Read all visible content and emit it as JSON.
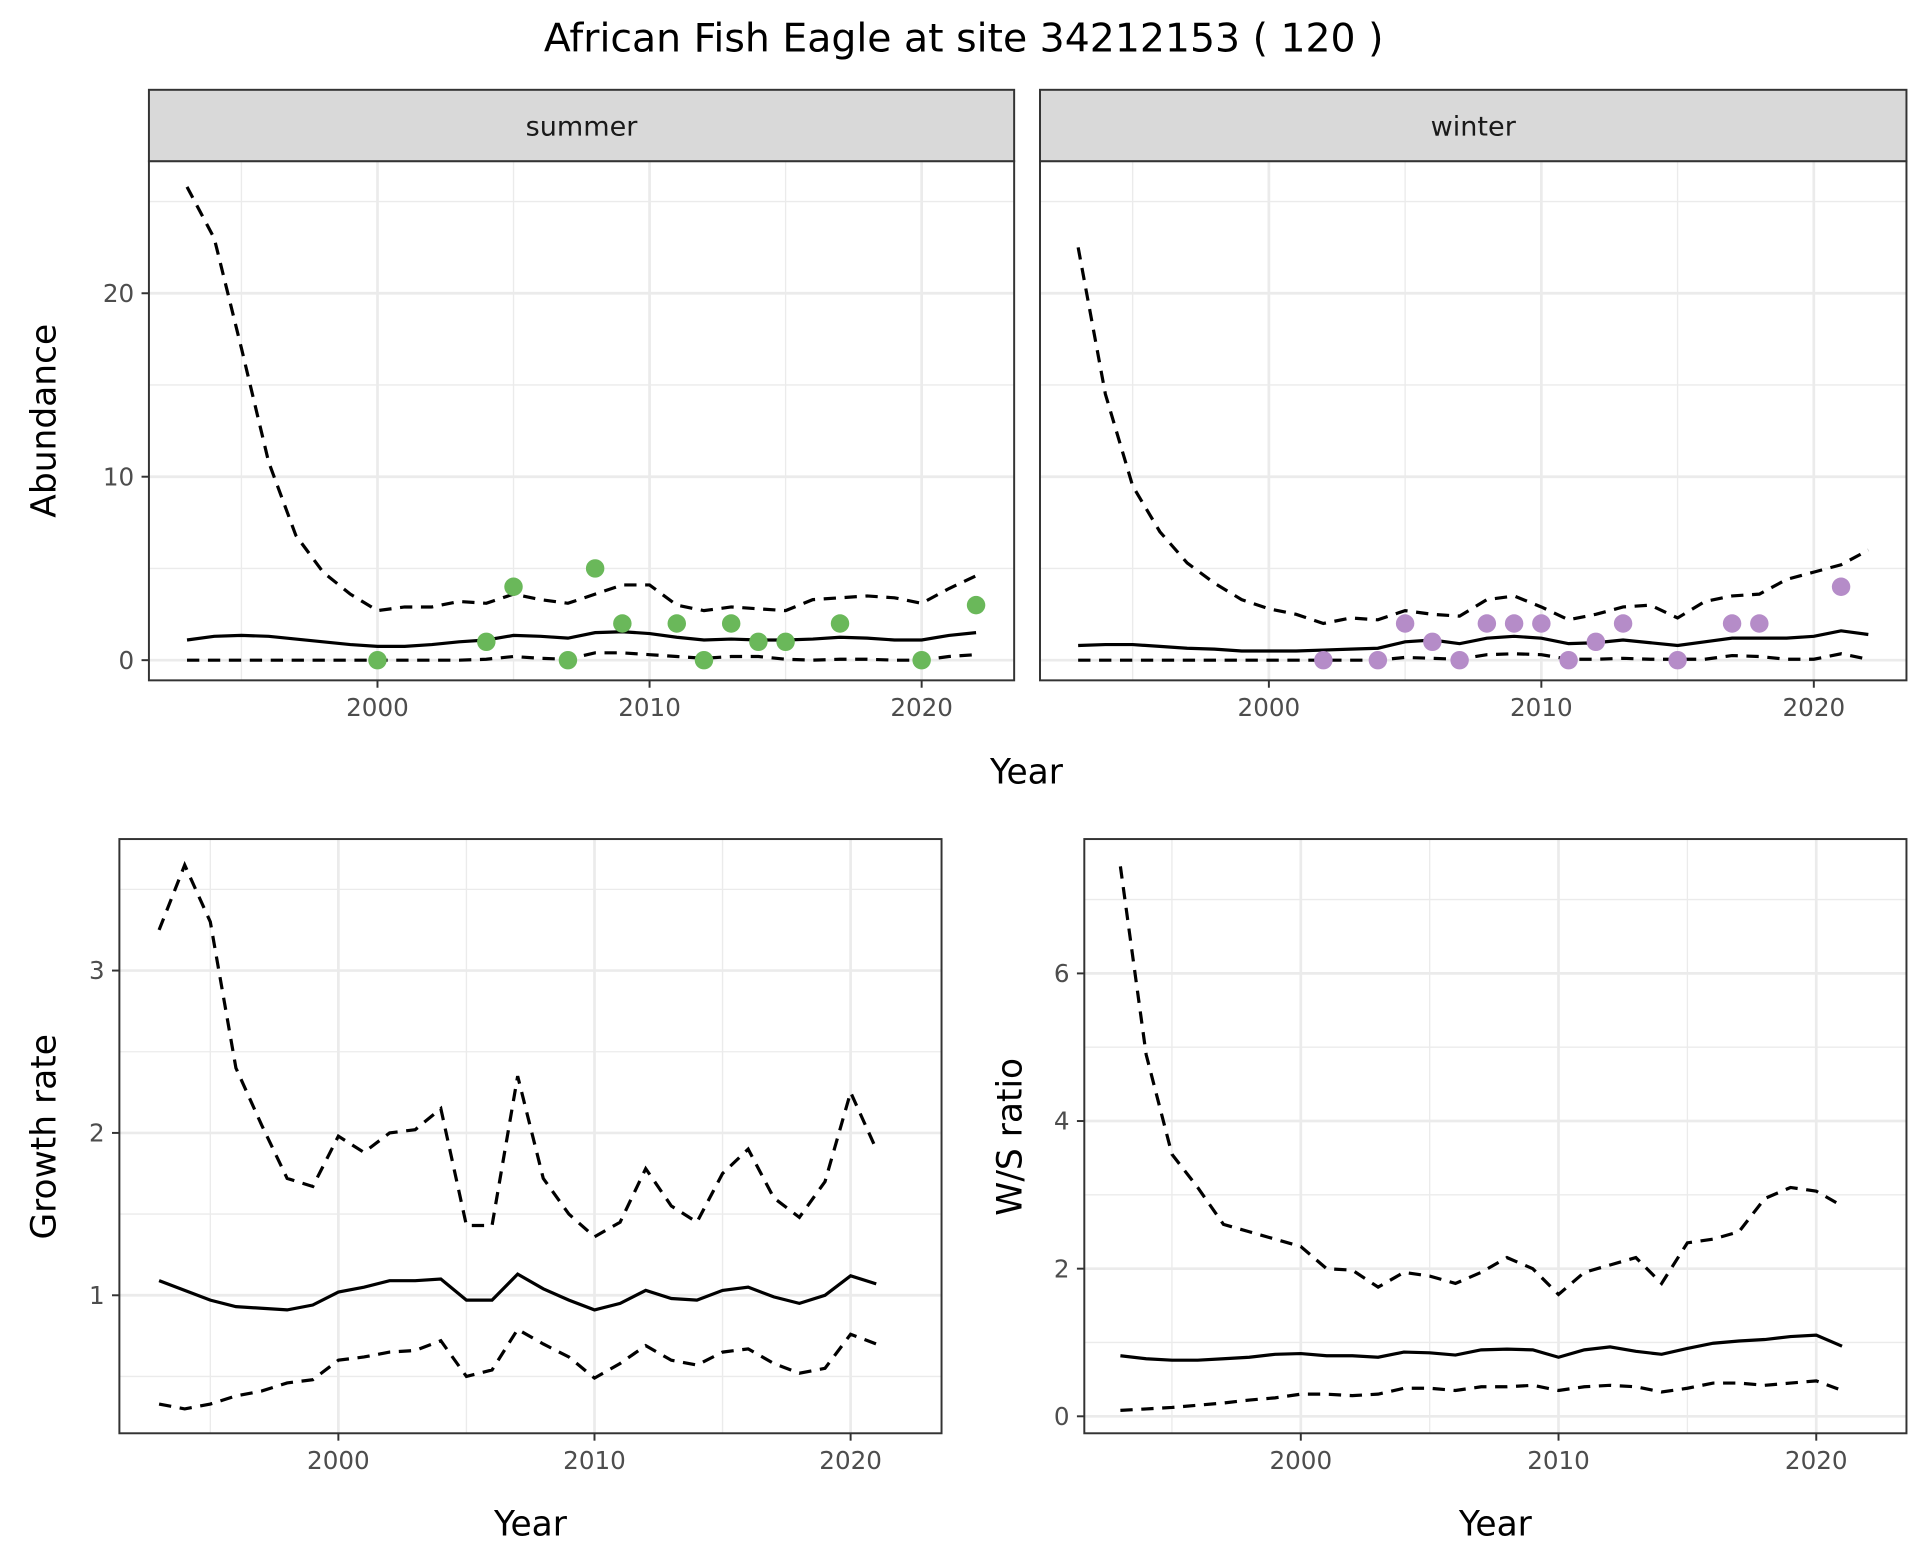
{
  "title": "African Fish Eagle at site 34212153 ( 120 )",
  "colors": {
    "summer": "#6ab85a",
    "winter": "#b58cc8",
    "line": "#000000",
    "grid": "#ebebeb",
    "strip": "#d9d9d9",
    "border": "#333333"
  },
  "chart_data": [
    {
      "type": "line",
      "id": "abundance",
      "facets": [
        "summer",
        "winter"
      ],
      "xlabel": "Year",
      "ylabel": "Abundance",
      "xlim": [
        1991.6,
        2023.4
      ],
      "ylim": [
        -1.1,
        27.2
      ],
      "xticks": [
        2000,
        2010,
        2020
      ],
      "yticks": [
        0,
        10,
        20
      ],
      "grid": true,
      "panels": [
        {
          "strip": "summer",
          "years": [
            1993,
            1994,
            1995,
            1996,
            1997,
            1998,
            1999,
            2000,
            2001,
            2002,
            2003,
            2004,
            2005,
            2006,
            2007,
            2008,
            2009,
            2010,
            2011,
            2012,
            2013,
            2014,
            2015,
            2016,
            2017,
            2018,
            2019,
            2020,
            2021,
            2022
          ],
          "mean": [
            1.1,
            1.3,
            1.35,
            1.3,
            1.15,
            1.0,
            0.85,
            0.75,
            0.75,
            0.85,
            1.0,
            1.1,
            1.35,
            1.3,
            1.2,
            1.5,
            1.55,
            1.45,
            1.25,
            1.1,
            1.15,
            1.1,
            1.1,
            1.15,
            1.25,
            1.2,
            1.1,
            1.1,
            1.35,
            1.5
          ],
          "upper": [
            25.8,
            23,
            17,
            10.8,
            6.8,
            4.8,
            3.6,
            2.7,
            2.9,
            2.9,
            3.2,
            3.1,
            3.6,
            3.3,
            3.1,
            3.6,
            4.1,
            4.1,
            3.0,
            2.7,
            2.9,
            2.8,
            2.7,
            3.3,
            3.4,
            3.5,
            3.4,
            3.1,
            3.9,
            4.6
          ],
          "lower": [
            0,
            0,
            0,
            0,
            0,
            0,
            0,
            0,
            0,
            0,
            0,
            0.05,
            0.2,
            0.1,
            0.05,
            0.4,
            0.4,
            0.3,
            0.2,
            0.1,
            0.2,
            0.2,
            0.05,
            0,
            0.05,
            0.05,
            0,
            0,
            0.2,
            0.3
          ],
          "points": {
            "x": [
              2000,
              2004,
              2005,
              2007,
              2008,
              2009,
              2011,
              2012,
              2013,
              2014,
              2015,
              2017,
              2020,
              2022
            ],
            "y": [
              0,
              1,
              4,
              0,
              5,
              2,
              2,
              0,
              2,
              1,
              1,
              2,
              0,
              3
            ]
          }
        },
        {
          "strip": "winter",
          "years": [
            1993,
            1994,
            1995,
            1996,
            1997,
            1998,
            1999,
            2000,
            2001,
            2002,
            2003,
            2004,
            2005,
            2006,
            2007,
            2008,
            2009,
            2010,
            2011,
            2012,
            2013,
            2014,
            2015,
            2016,
            2017,
            2018,
            2019,
            2020,
            2021,
            2022
          ],
          "mean": [
            0.8,
            0.85,
            0.85,
            0.75,
            0.65,
            0.6,
            0.5,
            0.5,
            0.5,
            0.55,
            0.6,
            0.65,
            1.0,
            1.1,
            0.9,
            1.2,
            1.3,
            1.2,
            0.9,
            0.95,
            1.1,
            0.95,
            0.8,
            1.0,
            1.2,
            1.2,
            1.2,
            1.3,
            1.6,
            1.4
          ],
          "upper": [
            22.5,
            14.5,
            9.5,
            7,
            5.3,
            4.2,
            3.3,
            2.8,
            2.5,
            2.0,
            2.3,
            2.2,
            2.7,
            2.5,
            2.4,
            3.3,
            3.5,
            2.9,
            2.2,
            2.5,
            2.9,
            3.0,
            2.3,
            3.2,
            3.5,
            3.6,
            4.4,
            4.8,
            5.2,
            6.0
          ],
          "lower": [
            0,
            0,
            0,
            0,
            0,
            0,
            0,
            0,
            0,
            0,
            0,
            0,
            0.15,
            0.1,
            0.05,
            0.3,
            0.35,
            0.3,
            0.05,
            0.05,
            0.1,
            0.05,
            0.05,
            0.05,
            0.25,
            0.2,
            0.05,
            0.05,
            0.35,
            0.05
          ],
          "points": {
            "x": [
              2002,
              2004,
              2005,
              2006,
              2007,
              2008,
              2009,
              2010,
              2011,
              2012,
              2013,
              2015,
              2017,
              2018,
              2021
            ],
            "y": [
              0,
              0,
              2,
              1,
              0,
              2,
              2,
              2,
              0,
              1,
              2,
              0,
              2,
              2,
              4
            ]
          }
        }
      ]
    },
    {
      "type": "line",
      "id": "growth",
      "xlabel": "Year",
      "ylabel": "Growth rate",
      "xlim": [
        1991.45,
        2023.55
      ],
      "ylim": [
        0.15,
        3.81
      ],
      "xticks": [
        2000,
        2010,
        2020
      ],
      "yticks": [
        1,
        2,
        3
      ],
      "grid": true,
      "years": [
        1993,
        1994,
        1995,
        1996,
        1997,
        1998,
        1999,
        2000,
        2001,
        2002,
        2003,
        2004,
        2005,
        2006,
        2007,
        2008,
        2009,
        2010,
        2011,
        2012,
        2013,
        2014,
        2015,
        2016,
        2017,
        2018,
        2019,
        2020,
        2021
      ],
      "mean": [
        1.09,
        1.03,
        0.97,
        0.93,
        0.92,
        0.91,
        0.94,
        1.02,
        1.05,
        1.09,
        1.09,
        1.1,
        0.97,
        0.97,
        1.13,
        1.04,
        0.97,
        0.91,
        0.95,
        1.03,
        0.98,
        0.97,
        1.03,
        1.05,
        0.99,
        0.95,
        1.0,
        1.12,
        1.07
      ],
      "upper": [
        3.25,
        3.65,
        3.3,
        2.4,
        2.05,
        1.72,
        1.67,
        1.98,
        1.88,
        2.0,
        2.02,
        2.15,
        1.43,
        1.43,
        2.35,
        1.72,
        1.5,
        1.36,
        1.45,
        1.78,
        1.55,
        1.45,
        1.75,
        1.9,
        1.6,
        1.48,
        1.7,
        2.25,
        1.9
      ],
      "lower": [
        0.33,
        0.3,
        0.33,
        0.38,
        0.41,
        0.46,
        0.48,
        0.6,
        0.62,
        0.65,
        0.66,
        0.72,
        0.5,
        0.54,
        0.79,
        0.7,
        0.62,
        0.49,
        0.58,
        0.69,
        0.6,
        0.57,
        0.65,
        0.67,
        0.58,
        0.52,
        0.55,
        0.76,
        0.7
      ]
    },
    {
      "type": "line",
      "id": "ratio",
      "xlabel": "Year",
      "ylabel": "W/S ratio",
      "xlim": [
        1991.6,
        2023.5
      ],
      "ylim": [
        -0.23,
        7.82
      ],
      "xticks": [
        2000,
        2010,
        2020
      ],
      "yticks": [
        0,
        2,
        4,
        6
      ],
      "grid": true,
      "years": [
        1993,
        1994,
        1995,
        1996,
        1997,
        1998,
        1999,
        2000,
        2001,
        2002,
        2003,
        2004,
        2005,
        2006,
        2007,
        2008,
        2009,
        2010,
        2011,
        2012,
        2013,
        2014,
        2015,
        2016,
        2017,
        2018,
        2019,
        2020,
        2021
      ],
      "mean": [
        0.82,
        0.78,
        0.76,
        0.76,
        0.78,
        0.8,
        0.84,
        0.85,
        0.82,
        0.82,
        0.8,
        0.87,
        0.86,
        0.83,
        0.9,
        0.91,
        0.9,
        0.8,
        0.9,
        0.94,
        0.88,
        0.84,
        0.92,
        0.99,
        1.02,
        1.04,
        1.08,
        1.1,
        0.95
      ],
      "upper": [
        7.45,
        4.9,
        3.55,
        3.1,
        2.6,
        2.5,
        2.4,
        2.3,
        2.0,
        1.98,
        1.75,
        1.95,
        1.9,
        1.8,
        1.95,
        2.15,
        2.0,
        1.65,
        1.95,
        2.05,
        2.15,
        1.8,
        2.35,
        2.4,
        2.5,
        2.95,
        3.1,
        3.05,
        2.85
      ],
      "lower": [
        0.08,
        0.1,
        0.12,
        0.15,
        0.18,
        0.22,
        0.25,
        0.3,
        0.3,
        0.28,
        0.3,
        0.38,
        0.38,
        0.35,
        0.4,
        0.4,
        0.42,
        0.35,
        0.4,
        0.42,
        0.4,
        0.33,
        0.38,
        0.45,
        0.45,
        0.42,
        0.45,
        0.48,
        0.35
      ]
    }
  ]
}
